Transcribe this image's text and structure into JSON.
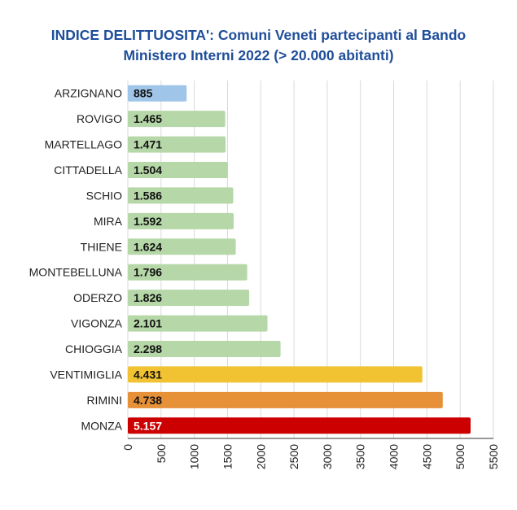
{
  "chart_data": {
    "type": "bar",
    "orientation": "horizontal",
    "title_lines": [
      "INDICE DELITTUOSITA': Comuni Veneti partecipanti al Bando",
      "Ministero Interni 2022 (> 20.000 abitanti)"
    ],
    "categories": [
      "ARZIGNANO",
      "ROVIGO",
      "MARTELLAGO",
      "CITTADELLA",
      "SCHIO",
      "MIRA",
      "THIENE",
      "MONTEBELLUNA",
      "ODERZO",
      "VIGONZA",
      "CHIOGGIA",
      "VENTIMIGLIA",
      "RIMINI",
      "MONZA"
    ],
    "values": [
      885,
      1465,
      1471,
      1504,
      1586,
      1592,
      1624,
      1796,
      1826,
      2101,
      2298,
      4431,
      4738,
      5157
    ],
    "value_labels": [
      "885",
      "1.465",
      "1.471",
      "1.504",
      "1.586",
      "1.592",
      "1.624",
      "1.796",
      "1.826",
      "2.101",
      "2.298",
      "4.431",
      "4.738",
      "5.157"
    ],
    "colors": [
      "#9fc5e8",
      "#b6d7a8",
      "#b6d7a8",
      "#b6d7a8",
      "#b6d7a8",
      "#b6d7a8",
      "#b6d7a8",
      "#b6d7a8",
      "#b6d7a8",
      "#b6d7a8",
      "#b6d7a8",
      "#f1c232",
      "#e69138",
      "#cc0000"
    ],
    "xlim": [
      0,
      5500
    ],
    "xticks": [
      0,
      500,
      1000,
      1500,
      2000,
      2500,
      3000,
      3500,
      4000,
      4500,
      5000,
      5500
    ],
    "grid": true,
    "legend": "none"
  },
  "colors": {
    "title": "#1f4e9a",
    "grid": "#d9d9d9",
    "axis": "#333333"
  }
}
